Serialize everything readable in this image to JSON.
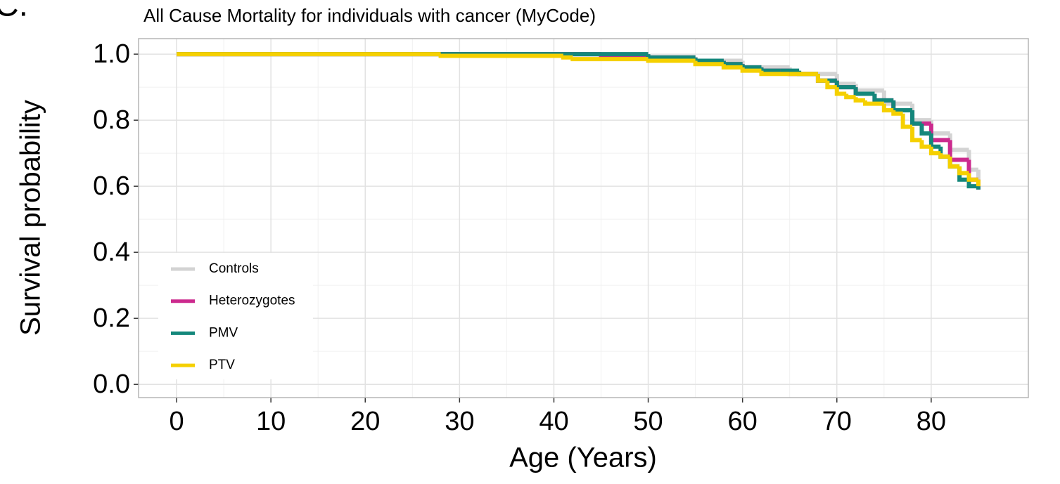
{
  "panel_label": "C.",
  "chart_data": {
    "type": "step",
    "title": "All Cause Mortality for individuals with cancer (MyCode)",
    "x_label": "Age (Years)",
    "y_label": "Survival probability",
    "xlim": [
      -4.03,
      90.3
    ],
    "xticks": [
      0,
      10,
      20,
      30,
      40,
      50,
      60,
      70,
      80
    ],
    "ylim": [
      -0.04,
      1.047
    ],
    "yticks": [
      {
        "value": 0,
        "label": "0.0"
      },
      0.2,
      0.4,
      0.6,
      0.8,
      {
        "value": 1,
        "label": "1.0"
      }
    ],
    "grid": true,
    "legend": "bottom-left",
    "series": [
      {
        "name": "Controls",
        "color": "#d3d3d3",
        "x": [
          0,
          40,
          50,
          55,
          60,
          65,
          70,
          72,
          75,
          78,
          80,
          82,
          84,
          85
        ],
        "values": [
          1,
          1,
          0.99,
          0.98,
          0.96,
          0.94,
          0.91,
          0.89,
          0.85,
          0.8,
          0.76,
          0.71,
          0.65,
          0.61
        ]
      },
      {
        "name": "Heterozygotes",
        "color": "#cc2a8e",
        "x": [
          0,
          45,
          50,
          55,
          58,
          60,
          62,
          65,
          68,
          70,
          72,
          74,
          76,
          78,
          80,
          82,
          84,
          85
        ],
        "values": [
          1,
          0.99,
          0.99,
          0.98,
          0.97,
          0.96,
          0.95,
          0.94,
          0.92,
          0.9,
          0.88,
          0.86,
          0.83,
          0.79,
          0.74,
          0.68,
          0.62,
          0.59
        ]
      },
      {
        "name": "PMV",
        "color": "#14877b",
        "x": [
          0,
          28,
          42,
          50,
          55,
          58,
          60,
          62,
          64,
          66,
          68,
          70,
          72,
          74,
          76,
          78,
          79,
          80,
          81,
          82,
          83,
          84,
          85
        ],
        "values": [
          1,
          1,
          1,
          0.99,
          0.98,
          0.97,
          0.96,
          0.95,
          0.95,
          0.94,
          0.92,
          0.9,
          0.88,
          0.86,
          0.83,
          0.79,
          0.76,
          0.72,
          0.69,
          0.66,
          0.62,
          0.6,
          0.59
        ]
      },
      {
        "name": "PTV",
        "color": "#f5d000",
        "x": [
          0,
          28,
          41,
          42,
          50,
          55,
          58,
          60,
          62,
          65,
          68,
          69,
          70,
          71,
          72,
          73,
          75,
          76,
          77,
          78,
          79,
          80,
          81,
          82,
          83,
          84,
          85
        ],
        "values": [
          1,
          0.995,
          0.99,
          0.985,
          0.98,
          0.97,
          0.96,
          0.95,
          0.94,
          0.94,
          0.92,
          0.9,
          0.88,
          0.87,
          0.86,
          0.85,
          0.83,
          0.82,
          0.78,
          0.74,
          0.72,
          0.7,
          0.69,
          0.66,
          0.64,
          0.62,
          0.6
        ]
      }
    ]
  }
}
